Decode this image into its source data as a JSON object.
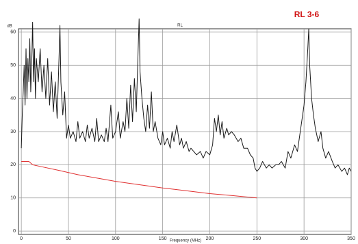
{
  "chart_data": {
    "type": "line",
    "title": "RL",
    "annotation": "RL 3-6",
    "y_label": "dB",
    "x_label": "Frequency (MHz)",
    "xlim": [
      -3,
      350
    ],
    "ylim": [
      -1,
      61
    ],
    "xticks": [
      0,
      50,
      100,
      150,
      200,
      250,
      300,
      350
    ],
    "yticks": [
      0,
      10,
      20,
      30,
      40,
      50,
      60
    ],
    "grid": true,
    "series": [
      {
        "color": "#1a1a1a",
        "x": [
          0,
          1,
          2,
          3,
          4,
          5,
          6,
          7,
          8,
          9,
          10,
          11,
          12,
          13,
          14,
          15,
          16,
          18,
          20,
          22,
          24,
          26,
          28,
          30,
          32,
          34,
          36,
          38,
          40,
          41,
          42,
          44,
          46,
          48,
          50,
          52,
          55,
          58,
          60,
          62,
          65,
          68,
          70,
          72,
          75,
          78,
          80,
          82,
          85,
          88,
          90,
          92,
          95,
          97,
          100,
          103,
          105,
          108,
          110,
          112,
          114,
          116,
          118,
          120,
          122,
          124,
          125,
          126,
          128,
          130,
          132,
          134,
          136,
          138,
          140,
          142,
          145,
          148,
          150,
          152,
          155,
          158,
          160,
          162,
          165,
          168,
          170,
          172,
          175,
          178,
          180,
          183,
          186,
          190,
          193,
          196,
          200,
          203,
          205,
          207,
          209,
          211,
          213,
          215,
          218,
          220,
          223,
          226,
          230,
          233,
          236,
          240,
          243,
          246,
          248,
          250,
          253,
          256,
          260,
          263,
          266,
          270,
          273,
          276,
          280,
          283,
          286,
          290,
          293,
          296,
          298,
          300,
          302,
          304,
          305,
          306,
          308,
          310,
          312,
          315,
          318,
          320,
          323,
          326,
          330,
          333,
          336,
          340,
          343,
          346,
          348,
          350
        ],
        "values": [
          25,
          35,
          42,
          50,
          38,
          55,
          40,
          52,
          45,
          58,
          42,
          50,
          63,
          45,
          55,
          40,
          52,
          45,
          55,
          42,
          50,
          40,
          52,
          38,
          48,
          36,
          45,
          34,
          52,
          62,
          45,
          35,
          42,
          28,
          32,
          28,
          30,
          27,
          33,
          28,
          30,
          27,
          32,
          28,
          31,
          27,
          34,
          27,
          29,
          27,
          31,
          27,
          38,
          28,
          30,
          36,
          28,
          33,
          30,
          40,
          31,
          44,
          33,
          46,
          36,
          55,
          64,
          48,
          40,
          34,
          30,
          38,
          31,
          42,
          30,
          33,
          28,
          26,
          30,
          26,
          28,
          25,
          30,
          27,
          32,
          26,
          28,
          25,
          27,
          24,
          25,
          24,
          23,
          24,
          22,
          24,
          23,
          26,
          34,
          30,
          35,
          29,
          33,
          28,
          31,
          29,
          30,
          29,
          27,
          28,
          25,
          25,
          23,
          22,
          19,
          18,
          19,
          21,
          19,
          20,
          19,
          20,
          20,
          21,
          19,
          24,
          22,
          26,
          24,
          30,
          34,
          38,
          45,
          55,
          61,
          50,
          40,
          35,
          31,
          27,
          30,
          25,
          22,
          24,
          21,
          19,
          20,
          18,
          19,
          17,
          19,
          18
        ]
      },
      {
        "color": "#e03030",
        "x": [
          0,
          8,
          12,
          20,
          40,
          60,
          80,
          100,
          120,
          150,
          180,
          200,
          220,
          250
        ],
        "values": [
          21,
          21,
          20,
          19.5,
          18.3,
          17,
          16,
          15,
          14.2,
          13,
          12,
          11.3,
          10.8,
          10
        ]
      }
    ]
  }
}
